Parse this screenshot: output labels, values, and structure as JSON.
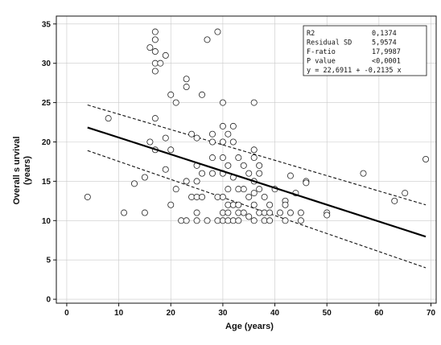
{
  "chart_data": {
    "type": "scatter",
    "xlabel": "Age (years)",
    "ylabel": "Overall survival (years)",
    "xlim": [
      -2,
      71
    ],
    "ylim": [
      -0.5,
      36
    ],
    "xticks": [
      0,
      10,
      20,
      30,
      40,
      50,
      60,
      70
    ],
    "yticks": [
      0,
      5,
      10,
      15,
      20,
      25,
      30,
      35
    ],
    "grid": true,
    "points": [
      [
        4,
        13
      ],
      [
        8,
        23
      ],
      [
        11,
        11
      ],
      [
        13,
        14.7
      ],
      [
        15,
        11
      ],
      [
        15,
        15.5
      ],
      [
        16,
        32
      ],
      [
        16,
        20
      ],
      [
        17,
        34
      ],
      [
        17,
        33
      ],
      [
        17,
        31.5
      ],
      [
        17,
        30
      ],
      [
        17,
        29
      ],
      [
        17,
        23
      ],
      [
        17,
        19
      ],
      [
        18,
        30
      ],
      [
        19,
        31
      ],
      [
        19,
        16.5
      ],
      [
        19,
        20.5
      ],
      [
        20,
        26
      ],
      [
        20,
        12
      ],
      [
        20,
        19
      ],
      [
        21,
        25
      ],
      [
        21,
        14
      ],
      [
        22,
        10
      ],
      [
        23,
        28
      ],
      [
        23,
        27
      ],
      [
        23,
        10
      ],
      [
        23,
        15
      ],
      [
        24,
        21
      ],
      [
        24,
        13
      ],
      [
        25,
        20.5
      ],
      [
        25,
        17
      ],
      [
        25,
        15
      ],
      [
        25,
        13
      ],
      [
        25,
        11
      ],
      [
        25,
        10
      ],
      [
        26,
        26
      ],
      [
        26,
        16
      ],
      [
        26,
        13
      ],
      [
        27,
        33
      ],
      [
        27,
        10
      ],
      [
        28,
        21
      ],
      [
        28,
        20
      ],
      [
        28,
        18
      ],
      [
        28,
        16
      ],
      [
        29,
        34
      ],
      [
        29,
        13
      ],
      [
        29,
        10
      ],
      [
        30,
        25
      ],
      [
        30,
        22
      ],
      [
        30,
        20
      ],
      [
        30,
        18
      ],
      [
        30,
        16
      ],
      [
        30,
        13
      ],
      [
        30,
        11
      ],
      [
        30,
        10
      ],
      [
        31,
        21
      ],
      [
        31,
        17
      ],
      [
        31,
        14
      ],
      [
        31,
        12
      ],
      [
        31,
        11
      ],
      [
        31,
        10
      ],
      [
        32,
        22
      ],
      [
        32,
        20
      ],
      [
        32,
        15.5
      ],
      [
        32,
        12
      ],
      [
        32,
        10
      ],
      [
        33,
        18
      ],
      [
        33,
        14
      ],
      [
        33,
        12
      ],
      [
        33,
        11
      ],
      [
        33,
        10
      ],
      [
        34,
        17
      ],
      [
        34,
        14
      ],
      [
        34,
        11
      ],
      [
        35,
        16
      ],
      [
        35,
        13
      ],
      [
        35,
        10.5
      ],
      [
        36,
        25
      ],
      [
        36,
        19
      ],
      [
        36,
        18
      ],
      [
        36,
        15
      ],
      [
        36,
        13.5
      ],
      [
        36,
        12
      ],
      [
        36,
        10
      ],
      [
        37,
        17
      ],
      [
        37,
        16
      ],
      [
        37,
        14
      ],
      [
        37,
        11
      ],
      [
        38,
        13
      ],
      [
        38,
        11
      ],
      [
        38,
        10
      ],
      [
        39,
        12
      ],
      [
        39,
        11
      ],
      [
        39,
        10
      ],
      [
        40,
        14
      ],
      [
        41,
        11
      ],
      [
        42,
        12.5
      ],
      [
        42,
        12
      ],
      [
        42,
        10
      ],
      [
        43,
        15.7
      ],
      [
        43,
        11
      ],
      [
        44,
        13.5
      ],
      [
        45,
        11
      ],
      [
        45,
        10
      ],
      [
        46,
        15
      ],
      [
        46,
        14.8
      ],
      [
        50,
        11
      ],
      [
        50,
        10.7
      ],
      [
        57,
        16
      ],
      [
        63,
        12.5
      ],
      [
        65,
        13.5
      ],
      [
        69,
        17.8
      ]
    ],
    "regression": {
      "intercept": 22.6911,
      "slope": -0.2135,
      "x_range": [
        4,
        69
      ]
    },
    "confidence_band": {
      "upper": [
        [
          4,
          24.7
        ],
        [
          69,
          12
        ]
      ],
      "lower": [
        [
          4,
          18.9
        ],
        [
          69,
          4
        ]
      ]
    },
    "stats_box": {
      "position": "top-right",
      "rows": [
        [
          "R2",
          "0,1374"
        ],
        [
          "Residual SD",
          "5,9574"
        ],
        [
          "F-ratio",
          "17,9987"
        ],
        [
          "P value",
          "<0,0001"
        ]
      ],
      "equation": "y = 22,6911  +  -0,2135 x"
    }
  }
}
